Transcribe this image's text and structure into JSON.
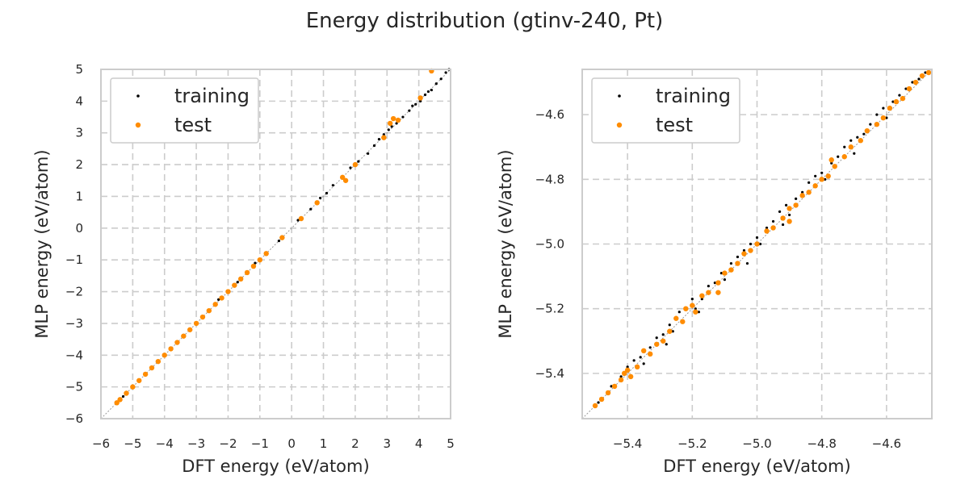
{
  "title": "Energy distribution (gtinv-240, Pt)",
  "colors": {
    "training": "#000000",
    "test": "#ff8c00",
    "grid": "#cccccc",
    "frame": "#cccccc"
  },
  "chart_data": [
    {
      "type": "scatter",
      "xlabel": "DFT energy (eV/atom)",
      "ylabel": "MLP energy (eV/atom)",
      "xlim": [
        -6,
        5
      ],
      "ylim": [
        -6,
        5
      ],
      "xticks": [
        -6,
        -5,
        -4,
        -3,
        -2,
        -1,
        0,
        1,
        2,
        3,
        4,
        5
      ],
      "yticks": [
        -6,
        -5,
        -4,
        -3,
        -2,
        -1,
        0,
        1,
        2,
        3,
        4,
        5
      ],
      "xtick_labels": [
        "−6",
        "−5",
        "−4",
        "−3",
        "−2",
        "−1",
        "0",
        "1",
        "2",
        "3",
        "4",
        "5"
      ],
      "ytick_labels": [
        "−6",
        "−5",
        "−4",
        "−3",
        "−2",
        "−1",
        "0",
        "1",
        "2",
        "3",
        "4",
        "5"
      ],
      "grid": true,
      "legend": "top-left",
      "series": [
        {
          "name": "training",
          "color": "#000000",
          "points": [
            [
              -5.5,
              -5.5
            ],
            [
              -5.3,
              -5.3
            ],
            [
              -5.0,
              -5.0
            ],
            [
              -4.6,
              -4.6
            ],
            [
              -4.2,
              -4.2
            ],
            [
              -3.8,
              -3.8
            ],
            [
              -3.4,
              -3.4
            ],
            [
              -3.0,
              -3.0
            ],
            [
              -2.6,
              -2.6
            ],
            [
              -2.3,
              -2.25
            ],
            [
              -2.0,
              -2.0
            ],
            [
              -1.7,
              -1.7
            ],
            [
              -1.4,
              -1.4
            ],
            [
              -1.15,
              -1.1
            ],
            [
              -0.8,
              -0.8
            ],
            [
              -0.4,
              -0.4
            ],
            [
              0.2,
              0.25
            ],
            [
              0.6,
              0.6
            ],
            [
              0.9,
              0.95
            ],
            [
              1.1,
              1.1
            ],
            [
              1.3,
              1.35
            ],
            [
              1.6,
              1.6
            ],
            [
              1.85,
              1.9
            ],
            [
              2.1,
              2.1
            ],
            [
              2.6,
              2.6
            ],
            [
              2.75,
              2.8
            ],
            [
              2.9,
              2.95
            ],
            [
              3.05,
              3.1
            ],
            [
              3.3,
              3.3
            ],
            [
              3.5,
              3.5
            ],
            [
              3.7,
              3.7
            ],
            [
              3.9,
              3.9
            ],
            [
              4.05,
              4.0
            ],
            [
              4.2,
              4.2
            ],
            [
              4.4,
              4.35
            ],
            [
              4.55,
              4.55
            ],
            [
              4.7,
              4.7
            ],
            [
              4.85,
              4.9
            ],
            [
              4.95,
              5.0
            ],
            [
              3.8,
              3.85
            ],
            [
              4.3,
              4.3
            ],
            [
              2.4,
              2.35
            ],
            [
              3.15,
              3.2
            ]
          ]
        },
        {
          "name": "test",
          "color": "#ff8c00",
          "points": [
            [
              -5.5,
              -5.5
            ],
            [
              -5.4,
              -5.4
            ],
            [
              -5.2,
              -5.2
            ],
            [
              -5.0,
              -5.0
            ],
            [
              -4.8,
              -4.8
            ],
            [
              -4.6,
              -4.6
            ],
            [
              -4.4,
              -4.4
            ],
            [
              -4.2,
              -4.2
            ],
            [
              -4.0,
              -4.0
            ],
            [
              -3.8,
              -3.8
            ],
            [
              -3.6,
              -3.6
            ],
            [
              -3.4,
              -3.4
            ],
            [
              -3.2,
              -3.2
            ],
            [
              -3.0,
              -3.0
            ],
            [
              -2.8,
              -2.8
            ],
            [
              -2.6,
              -2.6
            ],
            [
              -2.4,
              -2.4
            ],
            [
              -2.2,
              -2.2
            ],
            [
              -2.0,
              -2.0
            ],
            [
              -1.8,
              -1.8
            ],
            [
              -1.6,
              -1.6
            ],
            [
              -1.4,
              -1.4
            ],
            [
              -1.2,
              -1.2
            ],
            [
              -1.0,
              -1.0
            ],
            [
              -0.8,
              -0.8
            ],
            [
              -0.3,
              -0.3
            ],
            [
              0.3,
              0.3
            ],
            [
              0.8,
              0.8
            ],
            [
              1.6,
              1.6
            ],
            [
              1.7,
              1.5
            ],
            [
              2.0,
              2.0
            ],
            [
              2.9,
              2.85
            ],
            [
              3.1,
              3.3
            ],
            [
              3.2,
              3.45
            ],
            [
              3.35,
              3.4
            ],
            [
              4.05,
              4.1
            ],
            [
              4.4,
              4.95
            ]
          ]
        }
      ]
    },
    {
      "type": "scatter",
      "xlabel": "DFT energy (eV/atom)",
      "ylabel": "MLP energy (eV/atom)",
      "xlim": [
        -5.54,
        -4.46
      ],
      "ylim": [
        -5.54,
        -4.46
      ],
      "xticks": [
        -5.4,
        -5.2,
        -5.0,
        -4.8,
        -4.6
      ],
      "yticks": [
        -5.4,
        -5.2,
        -5.0,
        -4.8,
        -4.6
      ],
      "xtick_labels": [
        "−5.4",
        "−5.2",
        "−5.0",
        "−4.8",
        "−4.6"
      ],
      "ytick_labels": [
        "−5.4",
        "−5.2",
        "−5.0",
        "−4.8",
        "−4.6"
      ],
      "grid": true,
      "legend": "top-left",
      "series": [
        {
          "name": "training",
          "color": "#000000",
          "points": [
            [
              -5.49,
              -5.49
            ],
            [
              -5.45,
              -5.44
            ],
            [
              -5.42,
              -5.41
            ],
            [
              -5.4,
              -5.38
            ],
            [
              -5.38,
              -5.36
            ],
            [
              -5.36,
              -5.35
            ],
            [
              -5.35,
              -5.37
            ],
            [
              -5.33,
              -5.32
            ],
            [
              -5.31,
              -5.29
            ],
            [
              -5.29,
              -5.28
            ],
            [
              -5.27,
              -5.25
            ],
            [
              -5.26,
              -5.27
            ],
            [
              -5.24,
              -5.21
            ],
            [
              -5.22,
              -5.2
            ],
            [
              -5.2,
              -5.17
            ],
            [
              -5.19,
              -5.2
            ],
            [
              -5.17,
              -5.17
            ],
            [
              -5.15,
              -5.13
            ],
            [
              -5.13,
              -5.12
            ],
            [
              -5.11,
              -5.09
            ],
            [
              -5.1,
              -5.11
            ],
            [
              -5.08,
              -5.06
            ],
            [
              -5.06,
              -5.04
            ],
            [
              -5.04,
              -5.02
            ],
            [
              -5.02,
              -5.0
            ],
            [
              -5.0,
              -4.98
            ],
            [
              -4.99,
              -5.0
            ],
            [
              -4.97,
              -4.95
            ],
            [
              -4.95,
              -4.93
            ],
            [
              -4.93,
              -4.9
            ],
            [
              -4.91,
              -4.88
            ],
            [
              -4.9,
              -4.91
            ],
            [
              -4.88,
              -4.86
            ],
            [
              -4.86,
              -4.84
            ],
            [
              -4.84,
              -4.81
            ],
            [
              -4.82,
              -4.79
            ],
            [
              -4.8,
              -4.78
            ],
            [
              -4.79,
              -4.8
            ],
            [
              -4.77,
              -4.75
            ],
            [
              -4.75,
              -4.73
            ],
            [
              -4.73,
              -4.7
            ],
            [
              -4.71,
              -4.68
            ],
            [
              -4.69,
              -4.67
            ],
            [
              -4.67,
              -4.66
            ],
            [
              -4.65,
              -4.63
            ],
            [
              -4.63,
              -4.6
            ],
            [
              -4.61,
              -4.58
            ],
            [
              -4.6,
              -4.61
            ],
            [
              -4.58,
              -4.56
            ],
            [
              -4.56,
              -4.54
            ],
            [
              -4.54,
              -4.52
            ],
            [
              -4.52,
              -4.5
            ],
            [
              -4.5,
              -4.49
            ],
            [
              -4.48,
              -4.47
            ],
            [
              -4.92,
              -4.94
            ],
            [
              -5.03,
              -5.06
            ],
            [
              -5.18,
              -5.21
            ],
            [
              -4.7,
              -4.72
            ],
            [
              -5.28,
              -5.31
            ]
          ]
        },
        {
          "name": "test",
          "color": "#ff8c00",
          "points": [
            [
              -5.5,
              -5.5
            ],
            [
              -5.48,
              -5.48
            ],
            [
              -5.46,
              -5.46
            ],
            [
              -5.44,
              -5.44
            ],
            [
              -5.42,
              -5.42
            ],
            [
              -5.41,
              -5.4
            ],
            [
              -5.4,
              -5.39
            ],
            [
              -5.39,
              -5.41
            ],
            [
              -5.37,
              -5.38
            ],
            [
              -5.35,
              -5.33
            ],
            [
              -5.33,
              -5.34
            ],
            [
              -5.31,
              -5.31
            ],
            [
              -5.29,
              -5.3
            ],
            [
              -5.27,
              -5.27
            ],
            [
              -5.25,
              -5.23
            ],
            [
              -5.23,
              -5.24
            ],
            [
              -5.22,
              -5.2
            ],
            [
              -5.2,
              -5.19
            ],
            [
              -5.19,
              -5.21
            ],
            [
              -5.17,
              -5.16
            ],
            [
              -5.15,
              -5.15
            ],
            [
              -5.12,
              -5.12
            ],
            [
              -5.1,
              -5.09
            ],
            [
              -5.08,
              -5.08
            ],
            [
              -5.06,
              -5.06
            ],
            [
              -5.04,
              -5.03
            ],
            [
              -5.02,
              -5.02
            ],
            [
              -5.0,
              -5.0
            ],
            [
              -4.97,
              -4.96
            ],
            [
              -4.95,
              -4.95
            ],
            [
              -4.92,
              -4.92
            ],
            [
              -4.9,
              -4.89
            ],
            [
              -4.88,
              -4.88
            ],
            [
              -4.86,
              -4.85
            ],
            [
              -4.84,
              -4.84
            ],
            [
              -4.82,
              -4.82
            ],
            [
              -4.8,
              -4.8
            ],
            [
              -4.78,
              -4.79
            ],
            [
              -4.76,
              -4.76
            ],
            [
              -4.73,
              -4.73
            ],
            [
              -4.71,
              -4.7
            ],
            [
              -4.68,
              -4.68
            ],
            [
              -4.66,
              -4.65
            ],
            [
              -4.63,
              -4.63
            ],
            [
              -4.61,
              -4.61
            ],
            [
              -4.59,
              -4.58
            ],
            [
              -4.57,
              -4.56
            ],
            [
              -4.55,
              -4.55
            ],
            [
              -4.53,
              -4.52
            ],
            [
              -4.51,
              -4.5
            ],
            [
              -4.49,
              -4.48
            ],
            [
              -4.47,
              -4.47
            ],
            [
              -4.9,
              -4.93
            ],
            [
              -5.12,
              -5.15
            ],
            [
              -4.77,
              -4.74
            ]
          ]
        }
      ]
    }
  ]
}
